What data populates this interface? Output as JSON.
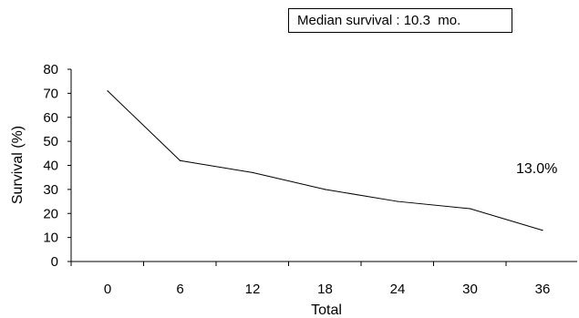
{
  "chart_data": {
    "type": "line",
    "title": "",
    "annotation": "Median survival : 10.3  mo.",
    "end_label": "13.0%",
    "xlabel": "Total",
    "ylabel": "Survival (%)",
    "x_ticks": [
      "0",
      "6",
      "12",
      "18",
      "24",
      "30",
      "36"
    ],
    "y_ticks": [
      "0",
      "10",
      "20",
      "30",
      "40",
      "50",
      "60",
      "70",
      "80"
    ],
    "ylim": [
      0,
      80
    ],
    "series": [
      {
        "x": [
          0,
          6,
          12,
          18,
          24,
          30,
          36
        ],
        "y": [
          71,
          42,
          37,
          30,
          25,
          22,
          13
        ],
        "color": "#000000"
      }
    ],
    "grid": false,
    "legend": "none"
  }
}
